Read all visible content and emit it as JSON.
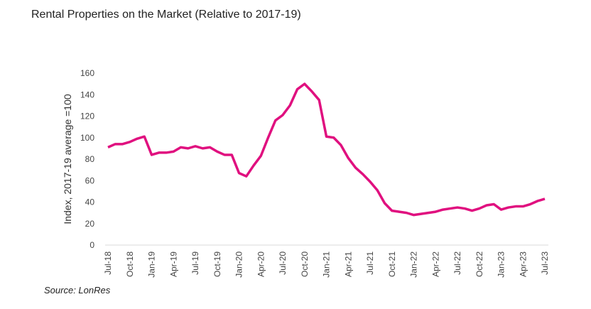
{
  "chart_data": {
    "type": "line",
    "title": "Rental Properties on the Market (Relative to 2017-19)",
    "xlabel": "",
    "ylabel": "Index, 2017-19 average =100",
    "ylim": [
      0,
      160
    ],
    "yticks": [
      0,
      20,
      40,
      60,
      80,
      100,
      120,
      140,
      160
    ],
    "xtick_labels": [
      "Jul-18",
      "Oct-18",
      "Jan-19",
      "Apr-19",
      "Jul-19",
      "Oct-19",
      "Jan-20",
      "Apr-20",
      "Jul-20",
      "Oct-20",
      "Jan-21",
      "Apr-21",
      "Jul-21",
      "Oct-21",
      "Jan-22",
      "Apr-22",
      "Jul-22",
      "Oct-22",
      "Jan-23",
      "Apr-23",
      "Jul-23"
    ],
    "grid": false,
    "color": "#e0107f",
    "series": [
      {
        "name": "Rental properties index",
        "start": "Jul-18",
        "frequency": "monthly",
        "values": [
          91,
          94,
          94,
          96,
          99,
          101,
          84,
          86,
          86,
          87,
          91,
          90,
          92,
          90,
          91,
          87,
          84,
          84,
          67,
          64,
          74,
          83,
          100,
          116,
          121,
          130,
          145,
          150,
          143,
          135,
          101,
          100,
          93,
          81,
          72,
          66,
          59,
          51,
          39,
          32,
          31,
          30,
          28,
          29,
          30,
          31,
          33,
          34,
          35,
          34,
          32,
          34,
          37,
          38,
          33,
          35,
          36,
          36,
          38,
          41,
          43
        ]
      }
    ],
    "source": "Source: LonRes"
  }
}
